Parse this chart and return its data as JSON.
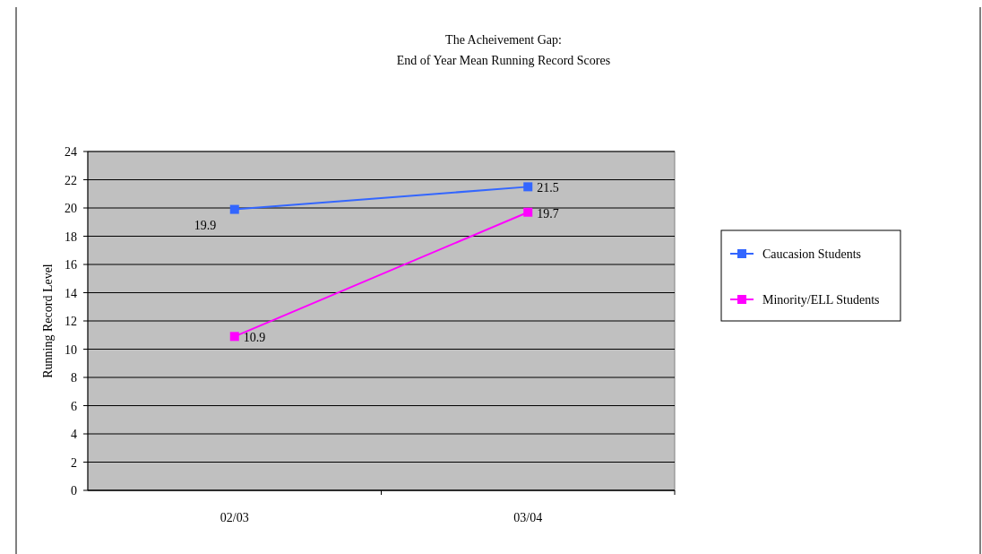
{
  "chart_data": {
    "type": "line",
    "title": "The Acheivement Gap:\nEnd of Year Mean Running Record Scores",
    "ylabel": "Running Record Level",
    "categories": [
      "02/03",
      "03/04"
    ],
    "series": [
      {
        "name": "Caucasion Students",
        "color": "#3366ff",
        "values": [
          19.9,
          21.5
        ]
      },
      {
        "name": "Minority/ELL Students",
        "color": "#ff00ff",
        "values": [
          10.9,
          19.7
        ]
      }
    ],
    "ylim": [
      0,
      24
    ],
    "yticks": [
      0,
      2,
      4,
      6,
      8,
      10,
      12,
      14,
      16,
      18,
      20,
      22,
      24
    ],
    "grid": "y",
    "legend": "right",
    "marker": "square",
    "data_labels": true
  }
}
